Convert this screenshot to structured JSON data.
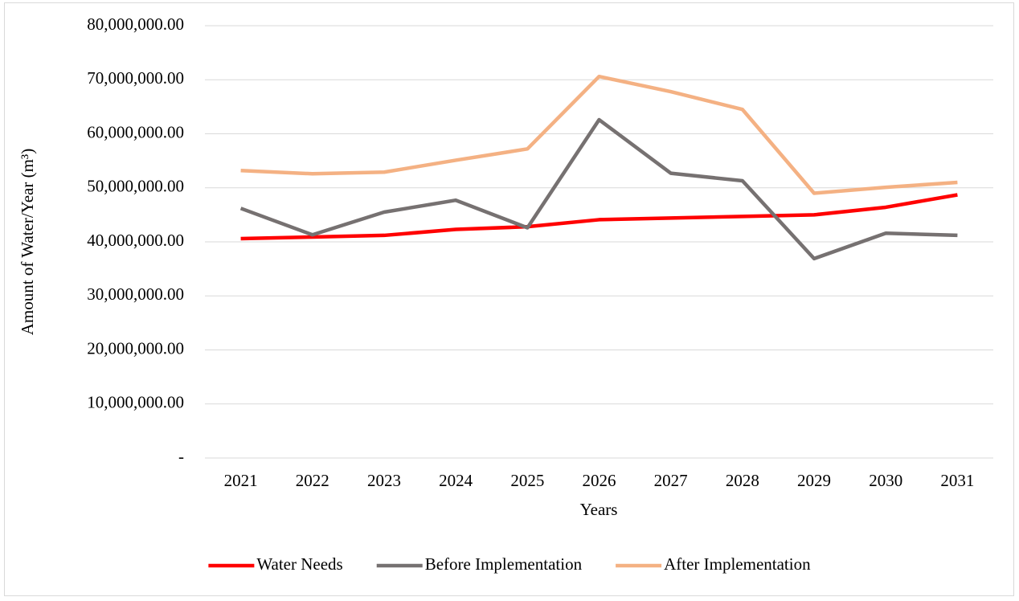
{
  "chart_data": {
    "type": "line",
    "x_label": "Years",
    "y_label": "Amount of Water/Year (m³)",
    "categories": [
      "2021",
      "2022",
      "2023",
      "2024",
      "2025",
      "2026",
      "2027",
      "2028",
      "2029",
      "2030",
      "2031"
    ],
    "series": [
      {
        "name": "Water Needs",
        "color": "#ff0000",
        "values": [
          40600000,
          40900000,
          41200000,
          42300000,
          42800000,
          44100000,
          44400000,
          44700000,
          45000000,
          46400000,
          48700000
        ]
      },
      {
        "name": "Before Implementation",
        "color": "#767171",
        "values": [
          46200000,
          41300000,
          45500000,
          47700000,
          42600000,
          62600000,
          52700000,
          51300000,
          36900000,
          41600000,
          41200000
        ]
      },
      {
        "name": "After Implementation",
        "color": "#f4b183",
        "values": [
          53200000,
          52600000,
          52900000,
          55100000,
          57200000,
          70600000,
          67800000,
          64500000,
          49000000,
          50100000,
          51000000
        ]
      }
    ],
    "ylim": [
      0,
      80000000
    ],
    "yticks": [
      {
        "value": 0,
        "label": "-"
      },
      {
        "value": 10000000,
        "label": "10,000,000.00"
      },
      {
        "value": 20000000,
        "label": "20,000,000.00"
      },
      {
        "value": 30000000,
        "label": "30,000,000.00"
      },
      {
        "value": 40000000,
        "label": "40,000,000.00"
      },
      {
        "value": 50000000,
        "label": "50,000,000.00"
      },
      {
        "value": 60000000,
        "label": "60,000,000.00"
      },
      {
        "value": 70000000,
        "label": "70,000,000.00"
      },
      {
        "value": 80000000,
        "label": "80,000,000.00"
      }
    ],
    "grid": true,
    "legend": "bottom"
  }
}
